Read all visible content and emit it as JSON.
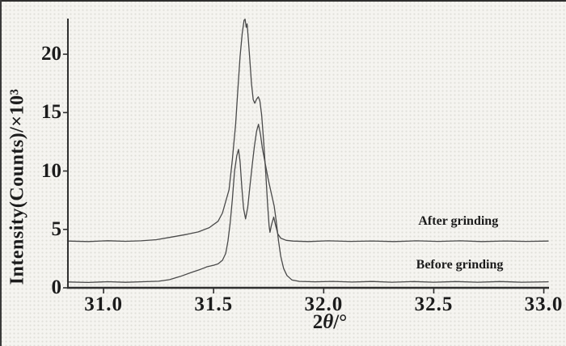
{
  "figure": {
    "background": "#f5f4f0",
    "border_color": "#2e2e2e",
    "curve_color": "#4a4a4a",
    "axis_color": "#2f2f2f",
    "text_color": "#1b1b1b"
  },
  "chart_data": {
    "type": "line",
    "title": "",
    "xlabel_parts": [
      "2",
      "θ",
      "/°"
    ],
    "ylabel": "Intensity(Counts)/×10³",
    "xlim": [
      30.838,
      33.02
    ],
    "ylim": [
      0,
      23.05
    ],
    "grid": false,
    "legend_position": "inline-annotations",
    "x_ticks": {
      "values": [
        31.0,
        31.5,
        32.0,
        32.5,
        33.0
      ],
      "labels": [
        "31.0",
        "31.5",
        "32.0",
        "32.5",
        "33.0"
      ]
    },
    "y_ticks": {
      "values": [
        0,
        5,
        10,
        15,
        20
      ],
      "labels": [
        "0",
        "5",
        "10",
        "15",
        "20"
      ]
    },
    "series": [
      {
        "name": "After grinding",
        "baseline_kcounts": 4.0,
        "main_peak": {
          "two_theta": 31.64,
          "kcounts": 23.0
        },
        "shoulder_peak": {
          "two_theta": 31.7,
          "kcounts": 16.35
        },
        "points": [
          [
            30.84,
            4.0
          ],
          [
            30.93,
            3.96
          ],
          [
            31.02,
            4.03
          ],
          [
            31.1,
            3.98
          ],
          [
            31.17,
            4.02
          ],
          [
            31.24,
            4.12
          ],
          [
            31.31,
            4.35
          ],
          [
            31.38,
            4.58
          ],
          [
            31.43,
            4.78
          ],
          [
            31.48,
            5.15
          ],
          [
            31.52,
            5.7
          ],
          [
            31.54,
            6.4
          ],
          [
            31.555,
            7.4
          ],
          [
            31.57,
            8.4
          ],
          [
            31.585,
            11.0
          ],
          [
            31.6,
            14.0
          ],
          [
            31.61,
            17.0
          ],
          [
            31.62,
            19.8
          ],
          [
            31.63,
            21.8
          ],
          [
            31.638,
            22.9
          ],
          [
            31.643,
            23.0
          ],
          [
            31.648,
            22.3
          ],
          [
            31.652,
            22.6
          ],
          [
            31.658,
            21.2
          ],
          [
            31.665,
            19.4
          ],
          [
            31.672,
            17.5
          ],
          [
            31.68,
            16.1
          ],
          [
            31.687,
            15.8
          ],
          [
            31.695,
            16.15
          ],
          [
            31.703,
            16.35
          ],
          [
            31.71,
            16.0
          ],
          [
            31.718,
            14.8
          ],
          [
            31.727,
            12.6
          ],
          [
            31.737,
            9.8
          ],
          [
            31.745,
            7.2
          ],
          [
            31.752,
            5.3
          ],
          [
            31.756,
            4.75
          ],
          [
            31.763,
            5.4
          ],
          [
            31.773,
            6.05
          ],
          [
            31.782,
            5.3
          ],
          [
            31.792,
            4.6
          ],
          [
            31.805,
            4.25
          ],
          [
            31.83,
            4.06
          ],
          [
            31.86,
            4.0
          ],
          [
            31.93,
            3.96
          ],
          [
            32.02,
            4.02
          ],
          [
            32.12,
            3.97
          ],
          [
            32.22,
            4.01
          ],
          [
            32.32,
            3.96
          ],
          [
            32.42,
            4.02
          ],
          [
            32.52,
            3.97
          ],
          [
            32.62,
            4.02
          ],
          [
            32.72,
            3.96
          ],
          [
            32.82,
            4.01
          ],
          [
            32.92,
            3.97
          ],
          [
            33.02,
            4.0
          ]
        ]
      },
      {
        "name": "Before grinding",
        "baseline_kcounts": 0.5,
        "peak_1": {
          "two_theta": 31.61,
          "kcounts": 11.85
        },
        "peak_2": {
          "two_theta": 31.7,
          "kcounts": 14.0
        },
        "points": [
          [
            30.84,
            0.5
          ],
          [
            30.93,
            0.46
          ],
          [
            31.02,
            0.52
          ],
          [
            31.1,
            0.47
          ],
          [
            31.18,
            0.52
          ],
          [
            31.25,
            0.56
          ],
          [
            31.3,
            0.7
          ],
          [
            31.35,
            0.98
          ],
          [
            31.4,
            1.32
          ],
          [
            31.44,
            1.58
          ],
          [
            31.47,
            1.8
          ],
          [
            31.5,
            1.93
          ],
          [
            31.52,
            2.05
          ],
          [
            31.54,
            2.35
          ],
          [
            31.555,
            2.95
          ],
          [
            31.565,
            4.0
          ],
          [
            31.575,
            5.5
          ],
          [
            31.585,
            7.6
          ],
          [
            31.595,
            10.0
          ],
          [
            31.605,
            11.3
          ],
          [
            31.613,
            11.85
          ],
          [
            31.62,
            10.8
          ],
          [
            31.628,
            8.6
          ],
          [
            31.636,
            6.8
          ],
          [
            31.645,
            5.9
          ],
          [
            31.655,
            6.9
          ],
          [
            31.665,
            8.7
          ],
          [
            31.675,
            10.5
          ],
          [
            31.685,
            12.1
          ],
          [
            31.695,
            13.4
          ],
          [
            31.704,
            14.0
          ],
          [
            31.713,
            13.1
          ],
          [
            31.722,
            11.9
          ],
          [
            31.733,
            10.8
          ],
          [
            31.748,
            9.3
          ],
          [
            31.762,
            8.1
          ],
          [
            31.775,
            7.0
          ],
          [
            31.785,
            5.6
          ],
          [
            31.795,
            4.0
          ],
          [
            31.805,
            2.7
          ],
          [
            31.818,
            1.65
          ],
          [
            31.833,
            1.05
          ],
          [
            31.855,
            0.68
          ],
          [
            31.89,
            0.55
          ],
          [
            31.96,
            0.51
          ],
          [
            32.04,
            0.55
          ],
          [
            32.13,
            0.49
          ],
          [
            32.22,
            0.54
          ],
          [
            32.31,
            0.48
          ],
          [
            32.41,
            0.53
          ],
          [
            32.5,
            0.48
          ],
          [
            32.6,
            0.53
          ],
          [
            32.7,
            0.48
          ],
          [
            32.8,
            0.53
          ],
          [
            32.9,
            0.48
          ],
          [
            33.02,
            0.51
          ]
        ]
      }
    ],
    "annotations": [
      {
        "text": "After grinding",
        "x": 32.43,
        "y": 5.6
      },
      {
        "text": "Before grinding",
        "x": 32.42,
        "y": 1.9
      }
    ]
  }
}
